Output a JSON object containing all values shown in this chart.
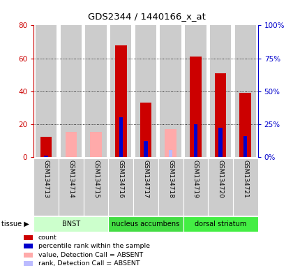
{
  "title": "GDS2344 / 1440166_x_at",
  "samples": [
    "GSM134713",
    "GSM134714",
    "GSM134715",
    "GSM134716",
    "GSM134717",
    "GSM134718",
    "GSM134719",
    "GSM134720",
    "GSM134721"
  ],
  "count_values": [
    12,
    0,
    0,
    68,
    33,
    0,
    61,
    51,
    39
  ],
  "rank_values": [
    1,
    0,
    0,
    30,
    12,
    0,
    25,
    22,
    16
  ],
  "absent_value": [
    0,
    15,
    15,
    0,
    0,
    17,
    0,
    0,
    0
  ],
  "absent_rank": [
    0,
    0,
    0,
    0,
    0,
    5,
    0,
    0,
    0
  ],
  "detection_call": [
    "P",
    "A",
    "A",
    "P",
    "P",
    "A",
    "P",
    "P",
    "P"
  ],
  "ylim_left": [
    0,
    80
  ],
  "ylim_right": [
    0,
    100
  ],
  "yticks_left": [
    0,
    20,
    40,
    60,
    80
  ],
  "yticks_right": [
    0,
    25,
    50,
    75,
    100
  ],
  "ytick_labels_right": [
    "0%",
    "25%",
    "50%",
    "75%",
    "100%"
  ],
  "color_count": "#cc0000",
  "color_rank": "#0000cc",
  "color_absent_value": "#ffaaaa",
  "color_absent_rank": "#bbbbff",
  "bar_bg_color": "#cccccc",
  "tissue_colors": [
    "#ccffcc",
    "#44dd44",
    "#44ee44"
  ],
  "tissue_labels": [
    "BNST",
    "nucleus accumbens",
    "dorsal striatum"
  ],
  "tissue_ranges": [
    [
      0,
      3
    ],
    [
      3,
      6
    ],
    [
      6,
      9
    ]
  ],
  "legend_items": [
    {
      "color": "#cc0000",
      "label": "count"
    },
    {
      "color": "#0000cc",
      "label": "percentile rank within the sample"
    },
    {
      "color": "#ffaaaa",
      "label": "value, Detection Call = ABSENT"
    },
    {
      "color": "#bbbbff",
      "label": "rank, Detection Call = ABSENT"
    }
  ]
}
